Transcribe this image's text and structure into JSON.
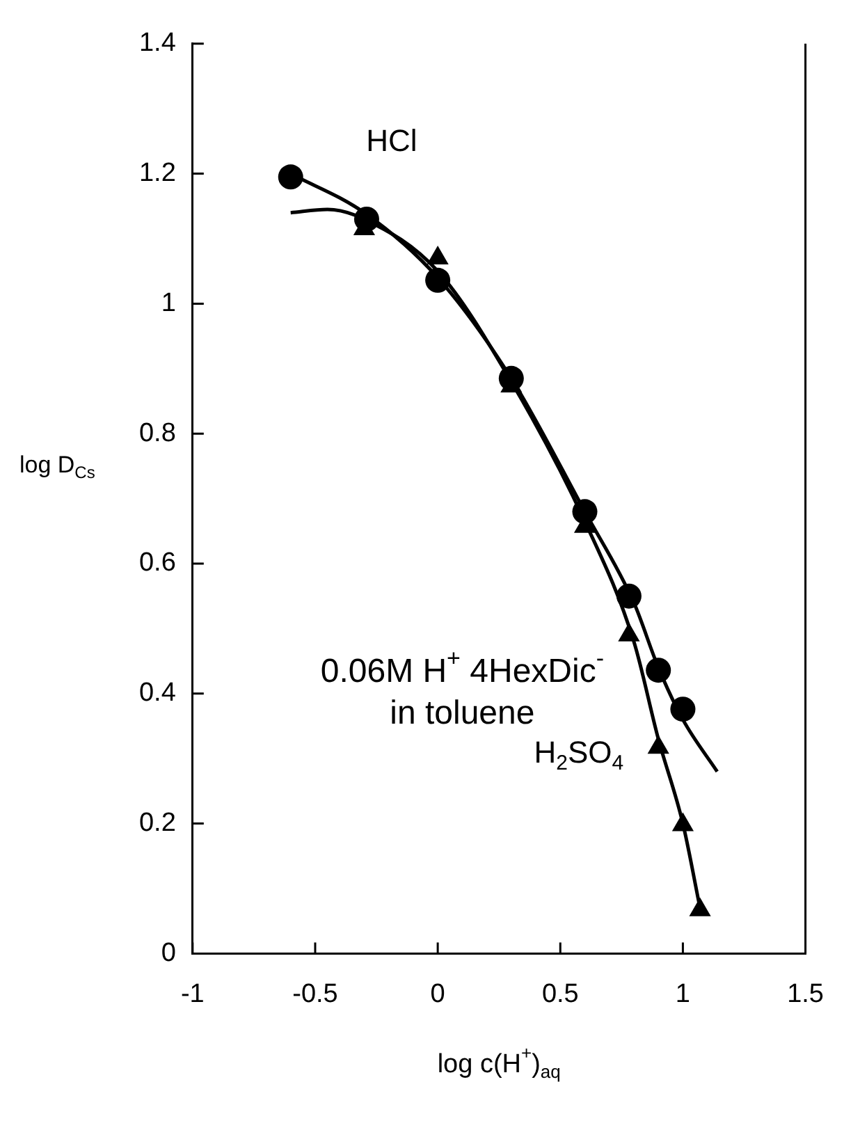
{
  "chart_data": {
    "type": "scatter",
    "xlabel": "log c(H$^{+}$)$_{aq}$",
    "ylabel": "log D$_{Cs}$",
    "xlim": [
      -1,
      1.5
    ],
    "xticks": [
      -1,
      -0.5,
      0,
      0.5,
      1,
      1.5
    ],
    "ylim": [
      0,
      1.4
    ],
    "yticks": [
      0,
      0.2,
      0.4,
      0.6,
      0.8,
      1,
      1.2,
      1.4
    ],
    "grid": false,
    "legend": false,
    "annotations": [
      "0.06M H$^{+}$ 4HexDic$^{-}$\nin toluene"
    ],
    "series": [
      {
        "name": "HCl",
        "type": "scatter",
        "marker": "circle",
        "color": "#000000",
        "x": [
          -0.6,
          -0.29,
          0,
          0.3,
          0.6,
          0.78,
          0.9,
          1.0
        ],
        "values": [
          1.195,
          1.13,
          1.036,
          0.885,
          0.68,
          0.55,
          0.436,
          0.376
        ]
      },
      {
        "name": "H$_{2}$SO$_{4}$",
        "type": "scatter",
        "marker": "triangle",
        "color": "#000000",
        "x": [
          -0.3,
          0,
          0.3,
          0.6,
          0.78,
          0.9,
          1.0,
          1.07
        ],
        "values": [
          1.115,
          1.07,
          0.873,
          0.657,
          0.49,
          0.317,
          0.198,
          0.067
        ]
      },
      {
        "type": "line",
        "marker": "none",
        "line_style": "solid",
        "color": "#000000",
        "x": [
          -0.6,
          -0.3,
          0,
          0.3,
          0.6,
          0.8,
          0.9,
          1.0,
          1.14
        ],
        "values": [
          1.2,
          1.14,
          1.04,
          0.885,
          0.68,
          0.54,
          0.44,
          0.36,
          0.28
        ]
      },
      {
        "type": "line",
        "marker": "none",
        "line_style": "solid",
        "color": "#000000",
        "x": [
          -0.6,
          -0.45,
          -0.3,
          0,
          0.3,
          0.6,
          0.8,
          0.9,
          1.0,
          1.07
        ],
        "values": [
          1.14,
          1.145,
          1.13,
          1.05,
          0.88,
          0.665,
          0.48,
          0.33,
          0.2,
          0.07
        ]
      }
    ]
  }
}
